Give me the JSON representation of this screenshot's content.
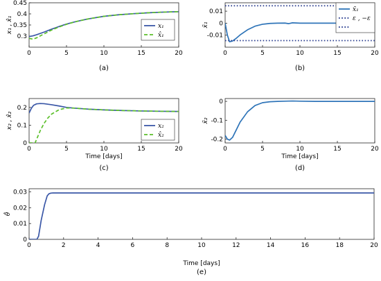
{
  "chart_data": [
    {
      "id": "a",
      "type": "line",
      "caption": "(a)",
      "ylabel": "x₁ , x̂₁",
      "xlabel": "",
      "xlim": [
        0,
        20
      ],
      "ylim": [
        0.25,
        0.45
      ],
      "xticks": [
        0,
        5,
        10,
        15,
        20
      ],
      "yticks": [
        0.3,
        0.35,
        0.4,
        0.45
      ],
      "ytick_labels": [
        "0.3",
        "0.35",
        "0.4",
        "0.45"
      ],
      "legend": "right",
      "series": [
        {
          "name": "x₁",
          "color": "#3a57a7",
          "style": "solid",
          "x": [
            0,
            0.5,
            1,
            2,
            3,
            4,
            5,
            6,
            7,
            8,
            10,
            12,
            14,
            16,
            18,
            20
          ],
          "y": [
            0.298,
            0.301,
            0.306,
            0.318,
            0.331,
            0.343,
            0.354,
            0.363,
            0.371,
            0.378,
            0.389,
            0.396,
            0.401,
            0.405,
            0.408,
            0.41
          ]
        },
        {
          "name": "x̂₁",
          "color": "#5bbf2a",
          "style": "dashed",
          "x": [
            0,
            0.5,
            1,
            2,
            3,
            4,
            5,
            6,
            7,
            8,
            10,
            12,
            14,
            16,
            18,
            20
          ],
          "y": [
            0.29,
            0.286,
            0.292,
            0.31,
            0.327,
            0.341,
            0.353,
            0.363,
            0.371,
            0.378,
            0.389,
            0.396,
            0.401,
            0.405,
            0.408,
            0.41
          ]
        }
      ]
    },
    {
      "id": "b",
      "type": "line",
      "caption": "(b)",
      "ylabel": "x̃₁",
      "xlabel": "",
      "xlim": [
        0,
        20
      ],
      "ylim": [
        -0.02,
        0.017
      ],
      "xticks": [
        0,
        5,
        10,
        15,
        20
      ],
      "yticks": [
        -0.01,
        0,
        0.01
      ],
      "ytick_labels": [
        "-0.01",
        "0",
        "0.01"
      ],
      "legend": "top-right",
      "series": [
        {
          "name": "x̃₁",
          "color": "#2e74b8",
          "style": "solid",
          "x": [
            0,
            0.3,
            0.6,
            1.0,
            1.5,
            2,
            3,
            4,
            5,
            6,
            7,
            8,
            8.5,
            9,
            10,
            12,
            15,
            18,
            20
          ],
          "y": [
            0.0,
            -0.01,
            -0.0155,
            -0.0148,
            -0.0125,
            -0.0098,
            -0.0055,
            -0.0025,
            -0.0009,
            -0.0002,
            0.0,
            0.0001,
            -0.0004,
            0.0003,
            0.0,
            0.0,
            0.0,
            0.0,
            0.0
          ]
        },
        {
          "name": "ε , −ε",
          "color": "#2a3d8f",
          "style": "dotted",
          "x": [
            0,
            20
          ],
          "y": [
            0.0145,
            0.0145
          ]
        },
        {
          "name": "",
          "color": "#2a3d8f",
          "style": "dotted",
          "x": [
            0,
            20
          ],
          "y": [
            -0.0145,
            -0.0145
          ]
        }
      ]
    },
    {
      "id": "c",
      "type": "line",
      "caption": "(c)",
      "ylabel": "x₂ , x̂₂",
      "xlabel": "Time [days]",
      "xlim": [
        0,
        20
      ],
      "ylim": [
        0,
        0.25
      ],
      "xticks": [
        0,
        5,
        10,
        15,
        20
      ],
      "yticks": [
        0,
        0.1,
        0.2
      ],
      "ytick_labels": [
        "0",
        "0.1",
        "0.2"
      ],
      "legend": "bottom-right",
      "series": [
        {
          "name": "x₂",
          "color": "#3a57a7",
          "style": "solid",
          "x": [
            0,
            0.3,
            0.6,
            1,
            1.5,
            2,
            3,
            4,
            5,
            6,
            8,
            10,
            12,
            15,
            18,
            20
          ],
          "y": [
            0.168,
            0.195,
            0.212,
            0.22,
            0.222,
            0.221,
            0.215,
            0.208,
            0.2,
            0.196,
            0.19,
            0.186,
            0.183,
            0.18,
            0.178,
            0.177
          ]
        },
        {
          "name": "x̂₂",
          "color": "#5bbf2a",
          "style": "dashed",
          "x": [
            0,
            0.5,
            0.8,
            1,
            1.5,
            2,
            2.5,
            3,
            4,
            5,
            6,
            8,
            10,
            12,
            15,
            18,
            20
          ],
          "y": [
            0.0,
            0.0,
            0.0,
            0.02,
            0.07,
            0.11,
            0.14,
            0.162,
            0.187,
            0.197,
            0.196,
            0.19,
            0.186,
            0.183,
            0.18,
            0.178,
            0.177
          ]
        }
      ]
    },
    {
      "id": "d",
      "type": "line",
      "caption": "(d)",
      "ylabel": "x̃₂",
      "xlabel": "Time [days]",
      "xlim": [
        0,
        20
      ],
      "ylim": [
        -0.22,
        0.015
      ],
      "xticks": [
        0,
        5,
        10,
        15,
        20
      ],
      "yticks": [
        -0.2,
        -0.1,
        0
      ],
      "ytick_labels": [
        "-0.2",
        "-0.1",
        "0"
      ],
      "legend": "",
      "series": [
        {
          "name": "",
          "color": "#2e74b8",
          "style": "solid",
          "x": [
            0,
            0.3,
            0.6,
            1,
            1.5,
            2,
            3,
            4,
            5,
            6,
            7,
            8,
            9,
            10,
            12,
            15,
            18,
            20
          ],
          "y": [
            -0.18,
            -0.2,
            -0.205,
            -0.19,
            -0.15,
            -0.11,
            -0.055,
            -0.022,
            -0.007,
            -0.002,
            0.0,
            0.001,
            0.002,
            0.001,
            0.0,
            0.0,
            0.0,
            0.0
          ]
        }
      ]
    },
    {
      "id": "e",
      "type": "line",
      "caption": "(e)",
      "ylabel": "θ̂",
      "xlabel": "Time [days]",
      "xlim": [
        0,
        20
      ],
      "ylim": [
        0,
        0.032
      ],
      "xticks": [
        0,
        2,
        4,
        6,
        8,
        10,
        12,
        14,
        16,
        18,
        20
      ],
      "yticks": [
        0,
        0.01,
        0.02,
        0.03
      ],
      "ytick_labels": [
        "0",
        "0.01",
        "0.02",
        "0.03"
      ],
      "legend": "",
      "series": [
        {
          "name": "",
          "color": "#3a57a7",
          "style": "solid",
          "x": [
            0,
            0.45,
            0.55,
            0.7,
            0.9,
            1.05,
            1.15,
            1.25,
            1.35,
            2,
            10,
            20
          ],
          "y": [
            0,
            0,
            0.002,
            0.012,
            0.022,
            0.0275,
            0.0288,
            0.0292,
            0.0293,
            0.0293,
            0.0293,
            0.0293
          ]
        }
      ]
    }
  ]
}
